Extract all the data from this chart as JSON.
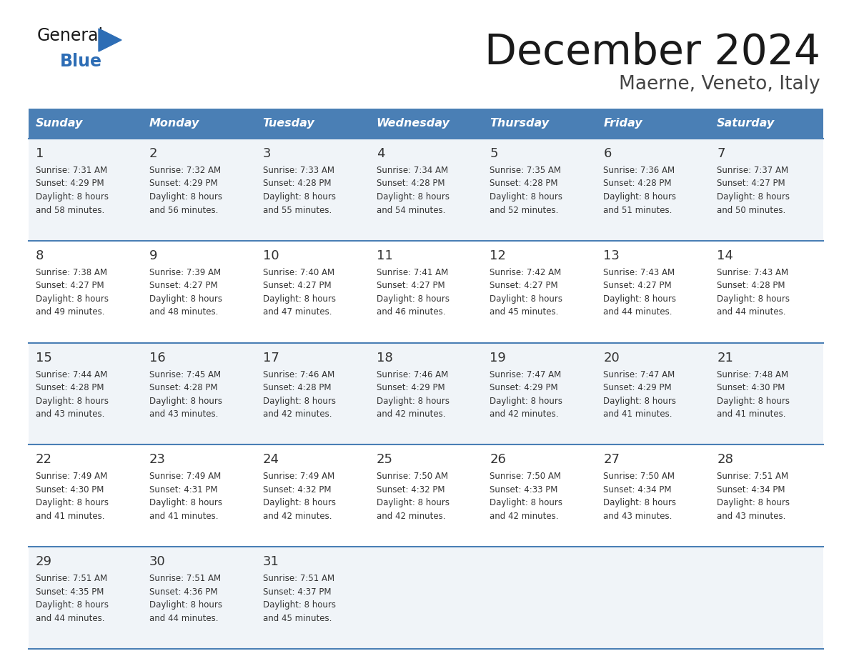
{
  "title": "December 2024",
  "subtitle": "Maerne, Veneto, Italy",
  "header_bg_color": "#4a7fb5",
  "header_text_color": "#ffffff",
  "odd_row_bg": "#f0f4f8",
  "even_row_bg": "#ffffff",
  "border_color": "#4a7fb5",
  "text_color": "#333333",
  "days_of_week": [
    "Sunday",
    "Monday",
    "Tuesday",
    "Wednesday",
    "Thursday",
    "Friday",
    "Saturday"
  ],
  "weeks": [
    [
      {
        "day": 1,
        "sunrise": "7:31 AM",
        "sunset": "4:29 PM",
        "daylight_hours": 8,
        "daylight_minutes": 58
      },
      {
        "day": 2,
        "sunrise": "7:32 AM",
        "sunset": "4:29 PM",
        "daylight_hours": 8,
        "daylight_minutes": 56
      },
      {
        "day": 3,
        "sunrise": "7:33 AM",
        "sunset": "4:28 PM",
        "daylight_hours": 8,
        "daylight_minutes": 55
      },
      {
        "day": 4,
        "sunrise": "7:34 AM",
        "sunset": "4:28 PM",
        "daylight_hours": 8,
        "daylight_minutes": 54
      },
      {
        "day": 5,
        "sunrise": "7:35 AM",
        "sunset": "4:28 PM",
        "daylight_hours": 8,
        "daylight_minutes": 52
      },
      {
        "day": 6,
        "sunrise": "7:36 AM",
        "sunset": "4:28 PM",
        "daylight_hours": 8,
        "daylight_minutes": 51
      },
      {
        "day": 7,
        "sunrise": "7:37 AM",
        "sunset": "4:27 PM",
        "daylight_hours": 8,
        "daylight_minutes": 50
      }
    ],
    [
      {
        "day": 8,
        "sunrise": "7:38 AM",
        "sunset": "4:27 PM",
        "daylight_hours": 8,
        "daylight_minutes": 49
      },
      {
        "day": 9,
        "sunrise": "7:39 AM",
        "sunset": "4:27 PM",
        "daylight_hours": 8,
        "daylight_minutes": 48
      },
      {
        "day": 10,
        "sunrise": "7:40 AM",
        "sunset": "4:27 PM",
        "daylight_hours": 8,
        "daylight_minutes": 47
      },
      {
        "day": 11,
        "sunrise": "7:41 AM",
        "sunset": "4:27 PM",
        "daylight_hours": 8,
        "daylight_minutes": 46
      },
      {
        "day": 12,
        "sunrise": "7:42 AM",
        "sunset": "4:27 PM",
        "daylight_hours": 8,
        "daylight_minutes": 45
      },
      {
        "day": 13,
        "sunrise": "7:43 AM",
        "sunset": "4:27 PM",
        "daylight_hours": 8,
        "daylight_minutes": 44
      },
      {
        "day": 14,
        "sunrise": "7:43 AM",
        "sunset": "4:28 PM",
        "daylight_hours": 8,
        "daylight_minutes": 44
      }
    ],
    [
      {
        "day": 15,
        "sunrise": "7:44 AM",
        "sunset": "4:28 PM",
        "daylight_hours": 8,
        "daylight_minutes": 43
      },
      {
        "day": 16,
        "sunrise": "7:45 AM",
        "sunset": "4:28 PM",
        "daylight_hours": 8,
        "daylight_minutes": 43
      },
      {
        "day": 17,
        "sunrise": "7:46 AM",
        "sunset": "4:28 PM",
        "daylight_hours": 8,
        "daylight_minutes": 42
      },
      {
        "day": 18,
        "sunrise": "7:46 AM",
        "sunset": "4:29 PM",
        "daylight_hours": 8,
        "daylight_minutes": 42
      },
      {
        "day": 19,
        "sunrise": "7:47 AM",
        "sunset": "4:29 PM",
        "daylight_hours": 8,
        "daylight_minutes": 42
      },
      {
        "day": 20,
        "sunrise": "7:47 AM",
        "sunset": "4:29 PM",
        "daylight_hours": 8,
        "daylight_minutes": 41
      },
      {
        "day": 21,
        "sunrise": "7:48 AM",
        "sunset": "4:30 PM",
        "daylight_hours": 8,
        "daylight_minutes": 41
      }
    ],
    [
      {
        "day": 22,
        "sunrise": "7:49 AM",
        "sunset": "4:30 PM",
        "daylight_hours": 8,
        "daylight_minutes": 41
      },
      {
        "day": 23,
        "sunrise": "7:49 AM",
        "sunset": "4:31 PM",
        "daylight_hours": 8,
        "daylight_minutes": 41
      },
      {
        "day": 24,
        "sunrise": "7:49 AM",
        "sunset": "4:32 PM",
        "daylight_hours": 8,
        "daylight_minutes": 42
      },
      {
        "day": 25,
        "sunrise": "7:50 AM",
        "sunset": "4:32 PM",
        "daylight_hours": 8,
        "daylight_minutes": 42
      },
      {
        "day": 26,
        "sunrise": "7:50 AM",
        "sunset": "4:33 PM",
        "daylight_hours": 8,
        "daylight_minutes": 42
      },
      {
        "day": 27,
        "sunrise": "7:50 AM",
        "sunset": "4:34 PM",
        "daylight_hours": 8,
        "daylight_minutes": 43
      },
      {
        "day": 28,
        "sunrise": "7:51 AM",
        "sunset": "4:34 PM",
        "daylight_hours": 8,
        "daylight_minutes": 43
      }
    ],
    [
      {
        "day": 29,
        "sunrise": "7:51 AM",
        "sunset": "4:35 PM",
        "daylight_hours": 8,
        "daylight_minutes": 44
      },
      {
        "day": 30,
        "sunrise": "7:51 AM",
        "sunset": "4:36 PM",
        "daylight_hours": 8,
        "daylight_minutes": 44
      },
      {
        "day": 31,
        "sunrise": "7:51 AM",
        "sunset": "4:37 PM",
        "daylight_hours": 8,
        "daylight_minutes": 45
      },
      null,
      null,
      null,
      null
    ]
  ],
  "logo_general_color": "#1a1a1a",
  "logo_blue_color": "#2d6db5",
  "logo_triangle_color": "#2d6db5"
}
